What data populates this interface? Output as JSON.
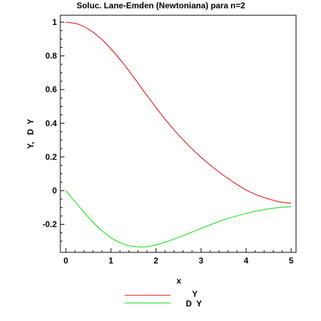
{
  "chart_data": {
    "type": "line",
    "title": "Soluc. Lane-Emden (Newtoniana) para n=2",
    "xlabel": "x",
    "ylabel": "Y,   D  Y",
    "xlim": [
      0,
      5
    ],
    "ylim": [
      -0.35,
      1.02
    ],
    "x_ticks": [
      0,
      1,
      2,
      3,
      4,
      5
    ],
    "x_tick_labels": [
      "0",
      "1",
      "2",
      "3",
      "4",
      "5"
    ],
    "y_ticks": [
      1,
      0.8,
      0.6,
      0.4,
      0.2,
      0,
      -0.2
    ],
    "y_tick_labels": [
      "1",
      "0.8",
      "0.6",
      "0.4",
      "0.2",
      "0",
      "-0.2"
    ],
    "grid": false,
    "legend_position": "bottom",
    "x": [
      0,
      0.25,
      0.5,
      0.75,
      1.0,
      1.25,
      1.5,
      1.75,
      2.0,
      2.25,
      2.5,
      2.75,
      3.0,
      3.25,
      3.5,
      3.75,
      4.0,
      4.25,
      4.5,
      4.75,
      5.0
    ],
    "series": [
      {
        "name": "Y",
        "color": "#e00000",
        "values": [
          1.0,
          0.99,
          0.959,
          0.909,
          0.842,
          0.763,
          0.675,
          0.583,
          0.494,
          0.408,
          0.331,
          0.261,
          0.198,
          0.142,
          0.091,
          0.045,
          0.004,
          -0.027,
          -0.049,
          -0.067,
          -0.075
        ]
      },
      {
        "name": "D  Y",
        "color": "#00dd00",
        "values": [
          0.0,
          -0.08,
          -0.158,
          -0.226,
          -0.279,
          -0.314,
          -0.331,
          -0.334,
          -0.322,
          -0.302,
          -0.277,
          -0.251,
          -0.224,
          -0.198,
          -0.174,
          -0.153,
          -0.135,
          -0.12,
          -0.108,
          -0.1,
          -0.095
        ]
      }
    ]
  }
}
